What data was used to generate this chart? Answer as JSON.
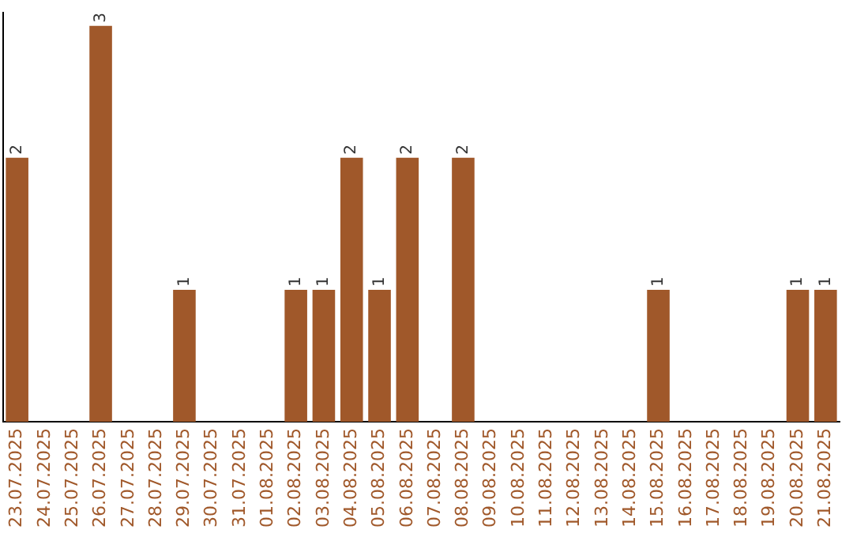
{
  "chart_data": {
    "type": "bar",
    "categories": [
      "23.07.2025",
      "24.07.2025",
      "25.07.2025",
      "26.07.2025",
      "27.07.2025",
      "28.07.2025",
      "29.07.2025",
      "30.07.2025",
      "31.07.2025",
      "01.08.2025",
      "02.08.2025",
      "03.08.2025",
      "04.08.2025",
      "05.08.2025",
      "06.08.2025",
      "07.08.2025",
      "08.08.2025",
      "09.08.2025",
      "10.08.2025",
      "11.08.2025",
      "12.08.2025",
      "13.08.2025",
      "14.08.2025",
      "15.08.2025",
      "16.08.2025",
      "17.08.2025",
      "18.08.2025",
      "19.08.2025",
      "20.08.2025",
      "21.08.2025"
    ],
    "values": [
      2,
      0,
      0,
      3,
      0,
      0,
      1,
      0,
      0,
      0,
      1,
      1,
      2,
      1,
      2,
      0,
      2,
      0,
      0,
      0,
      0,
      0,
      0,
      1,
      0,
      0,
      0,
      0,
      1,
      1
    ],
    "value_labels": [
      "2",
      null,
      null,
      "3",
      null,
      null,
      "1",
      null,
      null,
      null,
      "1",
      "1",
      "2",
      "1",
      "2",
      null,
      "2",
      null,
      null,
      null,
      null,
      null,
      null,
      "1",
      null,
      null,
      null,
      null,
      "1",
      "1"
    ],
    "color": "#a0582a",
    "ylim": [
      0,
      3.1
    ],
    "tick_labels": "x",
    "grid": false,
    "legend": false
  }
}
